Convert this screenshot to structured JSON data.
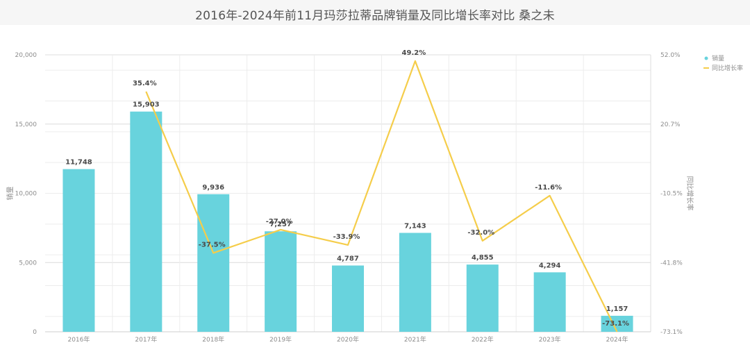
{
  "chart_data": {
    "type": "bar",
    "title": "2016年-2024年前11月玛莎拉蒂品牌销量及同比增长率对比 桑之未",
    "categories": [
      "2016年",
      "2017年",
      "2018年",
      "2019年",
      "2020年",
      "2021年",
      "2022年",
      "2023年",
      "2024年"
    ],
    "series": [
      {
        "name": "销量",
        "type": "bar",
        "axis": "left",
        "color": "#68d3dd",
        "values": [
          11748,
          15903,
          9936,
          7257,
          4787,
          7143,
          4855,
          4294,
          1157
        ],
        "labels": [
          "11,748",
          "15,903",
          "9,936",
          "7,257",
          "4,787",
          "7,143",
          "4,855",
          "4,294",
          "1,157"
        ]
      },
      {
        "name": "同比增长率",
        "type": "line",
        "axis": "right",
        "color": "#f5cd4a",
        "values": [
          null,
          35.4,
          -37.5,
          -27.0,
          -33.9,
          49.2,
          -32.0,
          -11.6,
          -73.1
        ],
        "labels": [
          "",
          "35.4%",
          "-37.5%",
          "-27.0%",
          "-33.9%",
          "49.2%",
          "-32.0%",
          "-11.6%",
          "-73.1%"
        ]
      }
    ],
    "ylabel_left": "销量",
    "ylabel_right": "同比增长率",
    "ylim_left": [
      0,
      20000
    ],
    "ylim_right": [
      -73.1,
      52.0
    ],
    "yticks_left": [
      "0",
      "5,000",
      "10,000",
      "15,000",
      "20,000"
    ],
    "yticks_right": [
      "-73.1%",
      "-41.8%",
      "-10.5%",
      "20.7%",
      "52.0%"
    ],
    "grid": true,
    "legend_position": "top-right"
  }
}
